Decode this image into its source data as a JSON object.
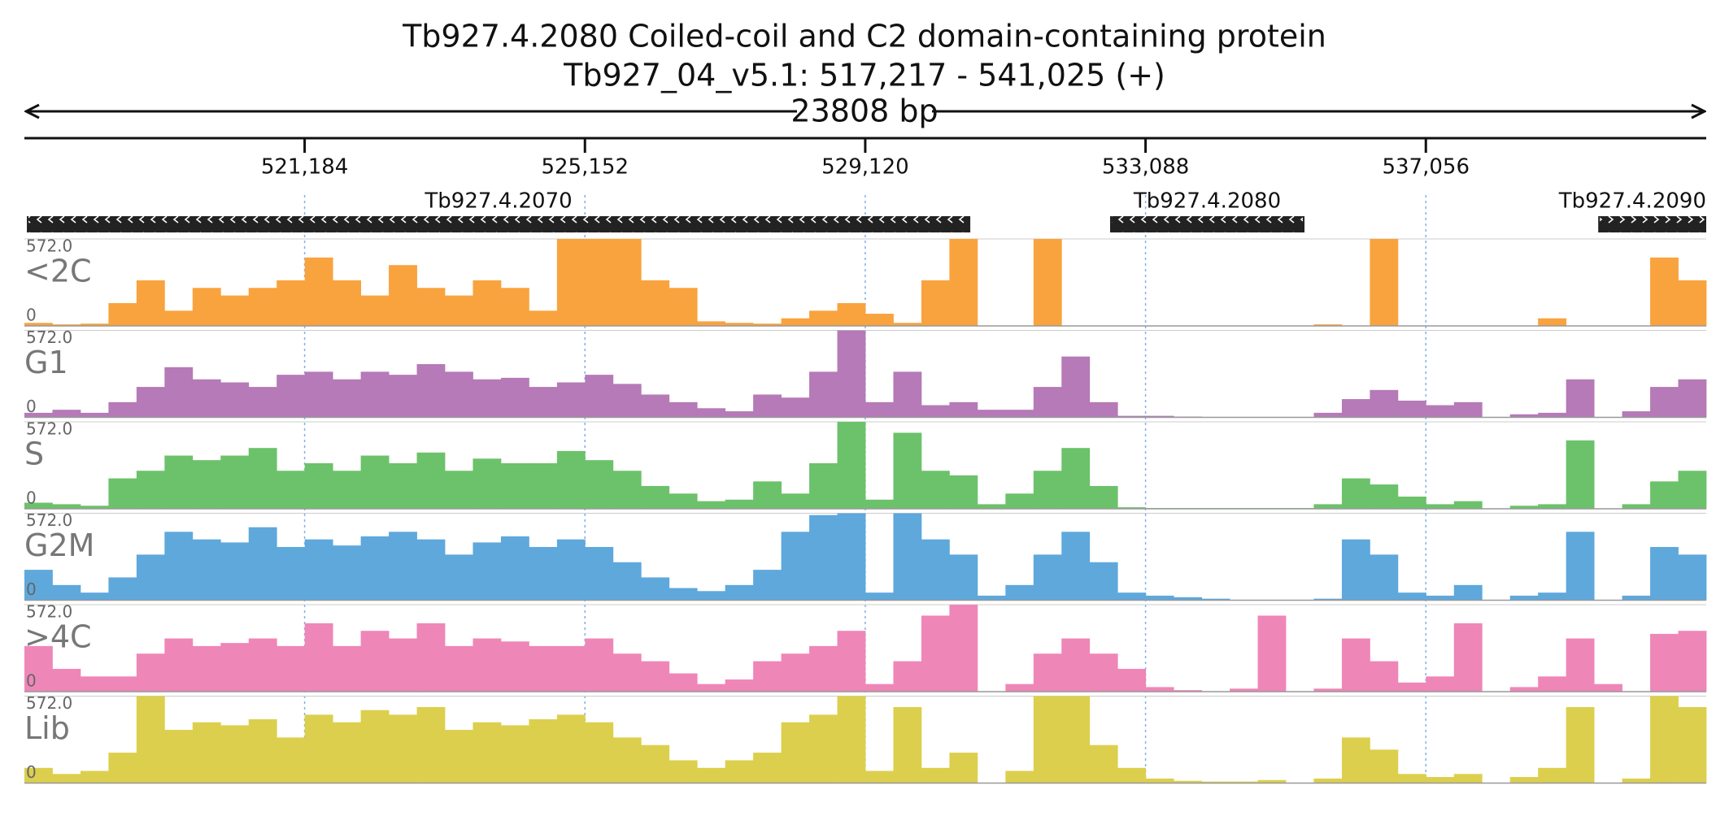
{
  "header": {
    "title": "Tb927.4.2080  Coiled-coil and C2 domain-containing protein",
    "subtitle": "Tb927_04_v5.1: 517,217 - 541,025 (+)",
    "span_label": "23808 bp"
  },
  "axis": {
    "xlim": [
      517217,
      541025
    ],
    "xticks": [
      {
        "value": 521184,
        "label": "521,184"
      },
      {
        "value": 525152,
        "label": "525,152"
      },
      {
        "value": 529120,
        "label": "529,120"
      },
      {
        "value": 533088,
        "label": "533,088"
      },
      {
        "value": 537056,
        "label": "537,056"
      }
    ]
  },
  "genes": [
    {
      "name": "Tb927.4.2070",
      "start": 517252,
      "end": 530607,
      "strand": "-"
    },
    {
      "name": "Tb927.4.2080",
      "start": 532586,
      "end": 535338,
      "strand": "-"
    },
    {
      "name": "Tb927.4.2090",
      "start": 539496,
      "end": 541025,
      "strand": "+"
    }
  ],
  "tracks": [
    {
      "name": "<2C",
      "color": "#f9a33e",
      "ylim": [
        0,
        572
      ],
      "yticks": [
        0,
        {
          "value": 572,
          "label": "572.0"
        }
      ],
      "values": [
        20,
        10,
        15,
        150,
        300,
        100,
        250,
        200,
        250,
        300,
        450,
        300,
        200,
        400,
        250,
        200,
        300,
        250,
        100,
        572,
        572,
        572,
        300,
        250,
        30,
        20,
        15,
        50,
        100,
        150,
        80,
        20,
        300,
        572,
        0,
        0,
        572,
        0,
        0,
        0,
        0,
        0,
        0,
        0,
        0,
        0,
        10,
        0,
        572,
        0,
        0,
        0,
        0,
        0,
        50,
        0,
        0,
        0,
        450,
        300
      ]
    },
    {
      "name": "G1",
      "color": "#b57ab7",
      "ylim": [
        0,
        572
      ],
      "yticks": [
        0,
        {
          "value": 572,
          "label": "572.0"
        }
      ],
      "values": [
        30,
        50,
        30,
        100,
        200,
        330,
        250,
        230,
        200,
        280,
        300,
        250,
        300,
        280,
        350,
        300,
        250,
        260,
        200,
        230,
        280,
        220,
        150,
        100,
        60,
        40,
        150,
        130,
        300,
        572,
        100,
        300,
        80,
        100,
        50,
        50,
        200,
        400,
        100,
        10,
        10,
        5,
        0,
        0,
        0,
        0,
        30,
        120,
        180,
        110,
        80,
        100,
        0,
        20,
        30,
        250,
        0,
        40,
        200,
        250
      ]
    },
    {
      "name": "S",
      "color": "#6cc26a",
      "ylim": [
        0,
        572
      ],
      "yticks": [
        0,
        {
          "value": 572,
          "label": "572.0"
        }
      ],
      "values": [
        40,
        30,
        20,
        200,
        250,
        350,
        320,
        350,
        400,
        250,
        300,
        250,
        350,
        300,
        370,
        250,
        330,
        300,
        300,
        380,
        320,
        250,
        150,
        100,
        50,
        60,
        180,
        100,
        300,
        572,
        60,
        500,
        250,
        220,
        30,
        100,
        250,
        400,
        150,
        10,
        5,
        5,
        5,
        5,
        5,
        5,
        30,
        200,
        160,
        80,
        30,
        50,
        0,
        20,
        30,
        450,
        0,
        30,
        180,
        250
      ]
    },
    {
      "name": "G2M",
      "color": "#5ea8dc",
      "ylim": [
        0,
        572
      ],
      "yticks": [
        0,
        {
          "value": 572,
          "label": "572.0"
        }
      ],
      "values": [
        200,
        100,
        50,
        150,
        300,
        450,
        400,
        380,
        480,
        350,
        400,
        360,
        420,
        450,
        400,
        300,
        380,
        420,
        350,
        400,
        350,
        250,
        150,
        80,
        60,
        100,
        200,
        450,
        560,
        572,
        50,
        572,
        400,
        300,
        30,
        100,
        300,
        450,
        250,
        50,
        30,
        20,
        10,
        0,
        0,
        0,
        10,
        400,
        300,
        50,
        30,
        100,
        0,
        30,
        50,
        450,
        0,
        30,
        350,
        300
      ]
    },
    {
      "name": ">4C",
      "color": "#ef86b8",
      "ylim": [
        0,
        572
      ],
      "yticks": [
        0,
        {
          "value": 572,
          "label": "572.0"
        }
      ],
      "values": [
        300,
        150,
        100,
        100,
        250,
        350,
        300,
        320,
        350,
        300,
        450,
        300,
        400,
        350,
        450,
        300,
        350,
        330,
        300,
        300,
        350,
        250,
        200,
        120,
        50,
        80,
        200,
        250,
        300,
        400,
        50,
        200,
        500,
        572,
        0,
        50,
        250,
        350,
        250,
        150,
        30,
        10,
        0,
        20,
        500,
        0,
        20,
        350,
        200,
        60,
        100,
        450,
        0,
        30,
        100,
        350,
        50,
        0,
        380,
        400
      ]
    },
    {
      "name": "Lib",
      "color": "#dccf4d",
      "ylim": [
        0,
        572
      ],
      "yticks": [
        0,
        {
          "value": 572,
          "label": "572.0"
        }
      ],
      "values": [
        100,
        60,
        80,
        200,
        572,
        350,
        400,
        380,
        420,
        300,
        450,
        400,
        480,
        450,
        500,
        350,
        400,
        380,
        420,
        450,
        400,
        300,
        250,
        150,
        100,
        150,
        200,
        400,
        450,
        572,
        80,
        500,
        100,
        200,
        0,
        80,
        572,
        572,
        250,
        100,
        30,
        15,
        10,
        10,
        20,
        0,
        30,
        300,
        220,
        60,
        40,
        60,
        0,
        40,
        100,
        500,
        0,
        30,
        572,
        500
      ]
    }
  ]
}
